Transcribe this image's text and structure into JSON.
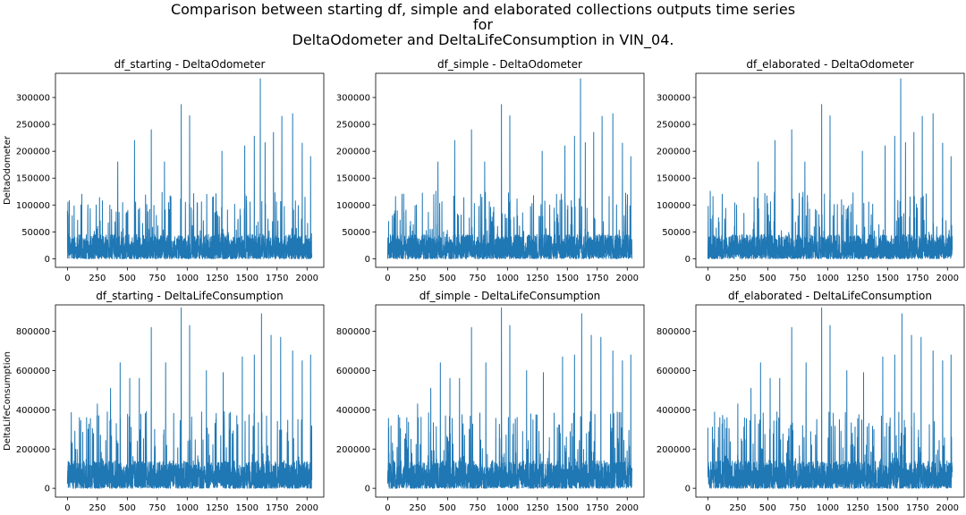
{
  "figure": {
    "suptitle_lines": [
      "Comparison between starting df, simple and elaborated collections outputs time series",
      "for",
      "DeltaOdometer and DeltaLifeConsumption in VIN_04."
    ],
    "series_color": "#1f77b4"
  },
  "chart_data": [
    {
      "type": "line",
      "title": "df_starting - DeltaOdometer",
      "xlabel": "",
      "ylabel": "DeltaOdometer",
      "xlim": [
        -100,
        2140
      ],
      "ylim": [
        -16000,
        345000
      ],
      "xticks": [
        0,
        250,
        500,
        750,
        1000,
        1250,
        1500,
        1750,
        2000
      ],
      "yticks": [
        0,
        50000,
        100000,
        150000,
        200000,
        250000,
        300000
      ],
      "n_points": 2041,
      "peaks": [
        [
          40,
          80000
        ],
        [
          120,
          120000
        ],
        [
          240,
          100000
        ],
        [
          420,
          180000
        ],
        [
          560,
          220000
        ],
        [
          700,
          240000
        ],
        [
          810,
          180000
        ],
        [
          950,
          287000
        ],
        [
          1020,
          266000
        ],
        [
          1290,
          200000
        ],
        [
          1480,
          210000
        ],
        [
          1560,
          228000
        ],
        [
          1610,
          335000
        ],
        [
          1650,
          216000
        ],
        [
          1720,
          235000
        ],
        [
          1790,
          265000
        ],
        [
          1880,
          270000
        ],
        [
          1960,
          215000
        ],
        [
          2030,
          190000
        ]
      ],
      "baseline_range": [
        0,
        45000
      ]
    },
    {
      "type": "line",
      "title": "df_simple - DeltaOdometer",
      "xlabel": "",
      "ylabel": "",
      "xlim": [
        -100,
        2140
      ],
      "ylim": [
        -16000,
        345000
      ],
      "xticks": [
        0,
        250,
        500,
        750,
        1000,
        1250,
        1500,
        1750,
        2000
      ],
      "yticks": [
        0,
        50000,
        100000,
        150000,
        200000,
        250000,
        300000
      ],
      "n_points": 2041,
      "peaks": [
        [
          40,
          80000
        ],
        [
          120,
          120000
        ],
        [
          240,
          100000
        ],
        [
          420,
          180000
        ],
        [
          560,
          220000
        ],
        [
          700,
          240000
        ],
        [
          810,
          180000
        ],
        [
          950,
          287000
        ],
        [
          1020,
          266000
        ],
        [
          1290,
          200000
        ],
        [
          1480,
          210000
        ],
        [
          1560,
          228000
        ],
        [
          1610,
          335000
        ],
        [
          1650,
          216000
        ],
        [
          1720,
          235000
        ],
        [
          1790,
          265000
        ],
        [
          1880,
          270000
        ],
        [
          1960,
          215000
        ],
        [
          2030,
          190000
        ]
      ],
      "baseline_range": [
        0,
        45000
      ]
    },
    {
      "type": "line",
      "title": "df_elaborated - DeltaOdometer",
      "xlabel": "",
      "ylabel": "",
      "xlim": [
        -100,
        2140
      ],
      "ylim": [
        -16000,
        345000
      ],
      "xticks": [
        0,
        250,
        500,
        750,
        1000,
        1250,
        1500,
        1750,
        2000
      ],
      "yticks": [
        0,
        50000,
        100000,
        150000,
        200000,
        250000,
        300000
      ],
      "n_points": 2041,
      "peaks": [
        [
          40,
          80000
        ],
        [
          120,
          120000
        ],
        [
          240,
          100000
        ],
        [
          420,
          180000
        ],
        [
          560,
          220000
        ],
        [
          700,
          240000
        ],
        [
          810,
          180000
        ],
        [
          950,
          287000
        ],
        [
          1020,
          266000
        ],
        [
          1290,
          200000
        ],
        [
          1480,
          210000
        ],
        [
          1560,
          228000
        ],
        [
          1610,
          335000
        ],
        [
          1650,
          216000
        ],
        [
          1720,
          235000
        ],
        [
          1790,
          265000
        ],
        [
          1880,
          270000
        ],
        [
          1960,
          215000
        ],
        [
          2030,
          190000
        ]
      ],
      "baseline_range": [
        0,
        45000
      ]
    },
    {
      "type": "line",
      "title": "df_starting - DeltaLifeConsumption",
      "xlabel": "",
      "ylabel": "DeltaLifeConsumption",
      "xlim": [
        -100,
        2140
      ],
      "ylim": [
        -45000,
        935000
      ],
      "xticks": [
        0,
        250,
        500,
        750,
        1000,
        1250,
        1500,
        1750,
        2000
      ],
      "yticks": [
        0,
        200000,
        400000,
        600000,
        800000
      ],
      "n_points": 2041,
      "peaks": [
        [
          40,
          230000
        ],
        [
          100,
          360000
        ],
        [
          160,
          360000
        ],
        [
          250,
          430000
        ],
        [
          360,
          510000
        ],
        [
          440,
          640000
        ],
        [
          520,
          560000
        ],
        [
          600,
          560000
        ],
        [
          700,
          820000
        ],
        [
          820,
          640000
        ],
        [
          950,
          920000
        ],
        [
          1020,
          830000
        ],
        [
          1160,
          600000
        ],
        [
          1300,
          590000
        ],
        [
          1460,
          670000
        ],
        [
          1560,
          680000
        ],
        [
          1620,
          890000
        ],
        [
          1700,
          780000
        ],
        [
          1780,
          770000
        ],
        [
          1880,
          700000
        ],
        [
          1960,
          650000
        ],
        [
          2030,
          680000
        ]
      ],
      "baseline_range": [
        0,
        140000
      ]
    },
    {
      "type": "line",
      "title": "df_simple - DeltaLifeConsumption",
      "xlabel": "",
      "ylabel": "",
      "xlim": [
        -100,
        2140
      ],
      "ylim": [
        -45000,
        935000
      ],
      "xticks": [
        0,
        250,
        500,
        750,
        1000,
        1250,
        1500,
        1750,
        2000
      ],
      "yticks": [
        0,
        200000,
        400000,
        600000,
        800000
      ],
      "n_points": 2041,
      "peaks": [
        [
          40,
          230000
        ],
        [
          100,
          360000
        ],
        [
          160,
          360000
        ],
        [
          250,
          430000
        ],
        [
          360,
          510000
        ],
        [
          440,
          640000
        ],
        [
          520,
          560000
        ],
        [
          600,
          560000
        ],
        [
          700,
          820000
        ],
        [
          820,
          640000
        ],
        [
          950,
          920000
        ],
        [
          1020,
          830000
        ],
        [
          1160,
          600000
        ],
        [
          1300,
          590000
        ],
        [
          1460,
          670000
        ],
        [
          1560,
          680000
        ],
        [
          1620,
          890000
        ],
        [
          1700,
          780000
        ],
        [
          1780,
          770000
        ],
        [
          1880,
          700000
        ],
        [
          1960,
          650000
        ],
        [
          2030,
          680000
        ]
      ],
      "baseline_range": [
        0,
        140000
      ]
    },
    {
      "type": "line",
      "title": "df_elaborated - DeltaLifeConsumption",
      "xlabel": "",
      "ylabel": "",
      "xlim": [
        -100,
        2140
      ],
      "ylim": [
        -45000,
        935000
      ],
      "xticks": [
        0,
        250,
        500,
        750,
        1000,
        1250,
        1500,
        1750,
        2000
      ],
      "yticks": [
        0,
        200000,
        400000,
        600000,
        800000
      ],
      "n_points": 2041,
      "peaks": [
        [
          40,
          230000
        ],
        [
          100,
          360000
        ],
        [
          160,
          360000
        ],
        [
          250,
          430000
        ],
        [
          360,
          510000
        ],
        [
          440,
          640000
        ],
        [
          520,
          560000
        ],
        [
          600,
          560000
        ],
        [
          700,
          820000
        ],
        [
          820,
          640000
        ],
        [
          950,
          920000
        ],
        [
          1020,
          830000
        ],
        [
          1160,
          600000
        ],
        [
          1300,
          590000
        ],
        [
          1460,
          670000
        ],
        [
          1560,
          680000
        ],
        [
          1620,
          890000
        ],
        [
          1700,
          780000
        ],
        [
          1780,
          770000
        ],
        [
          1880,
          700000
        ],
        [
          1960,
          650000
        ],
        [
          2030,
          680000
        ]
      ],
      "baseline_range": [
        0,
        140000
      ]
    }
  ]
}
